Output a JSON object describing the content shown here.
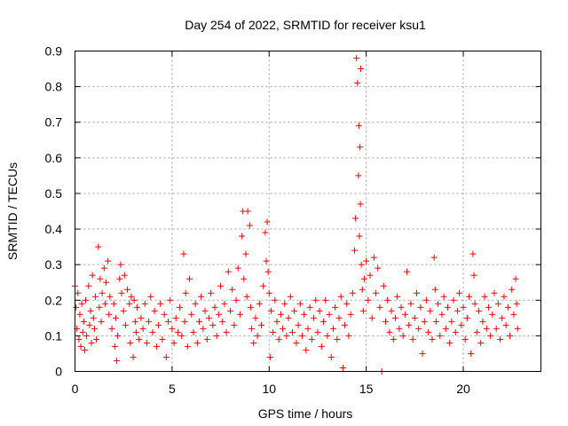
{
  "chart_data": {
    "type": "scatter",
    "title": "Day 254 of 2022, SRMTID for receiver ksu1",
    "xlabel": "GPS time / hours",
    "ylabel": "SRMTID / TECUs",
    "xlim": [
      0,
      24
    ],
    "ylim": [
      0,
      0.9
    ],
    "xticks": [
      0,
      5,
      10,
      15,
      20
    ],
    "xtick_labels": [
      "0",
      "5",
      "10",
      "15",
      "20"
    ],
    "yticks": [
      0,
      0.1,
      0.2,
      0.3,
      0.4,
      0.5,
      0.6,
      0.7,
      0.8,
      0.9
    ],
    "ytick_labels": [
      "0",
      "0.1",
      "0.2",
      "0.3",
      "0.4",
      "0.5",
      "0.6",
      "0.7",
      "0.8",
      "0.9"
    ],
    "grid": true,
    "marker": "+",
    "color": "#ff0000",
    "series": [
      {
        "name": "SRMTID",
        "points": [
          [
            0.0,
            0.24
          ],
          [
            0.05,
            0.18
          ],
          [
            0.1,
            0.12
          ],
          [
            0.15,
            0.22
          ],
          [
            0.2,
            0.09
          ],
          [
            0.25,
            0.16
          ],
          [
            0.3,
            0.07
          ],
          [
            0.35,
            0.19
          ],
          [
            0.4,
            0.11
          ],
          [
            0.45,
            0.14
          ],
          [
            0.5,
            0.06
          ],
          [
            0.55,
            0.2
          ],
          [
            0.6,
            0.1
          ],
          [
            0.7,
            0.24
          ],
          [
            0.75,
            0.13
          ],
          [
            0.8,
            0.17
          ],
          [
            0.85,
            0.08
          ],
          [
            0.9,
            0.27
          ],
          [
            0.95,
            0.15
          ],
          [
            1.0,
            0.12
          ],
          [
            1.05,
            0.21
          ],
          [
            1.1,
            0.09
          ],
          [
            1.2,
            0.35
          ],
          [
            1.25,
            0.18
          ],
          [
            1.3,
            0.26
          ],
          [
            1.35,
            0.14
          ],
          [
            1.4,
            0.22
          ],
          [
            1.5,
            0.29
          ],
          [
            1.55,
            0.19
          ],
          [
            1.6,
            0.25
          ],
          [
            1.7,
            0.31
          ],
          [
            1.75,
            0.16
          ],
          [
            1.8,
            0.21
          ],
          [
            1.9,
            0.12
          ],
          [
            2.0,
            0.19
          ],
          [
            2.05,
            0.07
          ],
          [
            2.1,
            0.15
          ],
          [
            2.15,
            0.03
          ],
          [
            2.2,
            0.1
          ],
          [
            2.3,
            0.26
          ],
          [
            2.35,
            0.3
          ],
          [
            2.4,
            0.22
          ],
          [
            2.5,
            0.17
          ],
          [
            2.55,
            0.27
          ],
          [
            2.6,
            0.13
          ],
          [
            2.7,
            0.23
          ],
          [
            2.8,
            0.19
          ],
          [
            2.85,
            0.08
          ],
          [
            2.9,
            0.21
          ],
          [
            3.0,
            0.04
          ],
          [
            3.05,
            0.2
          ],
          [
            3.1,
            0.14
          ],
          [
            3.15,
            0.11
          ],
          [
            3.2,
            0.18
          ],
          [
            3.3,
            0.09
          ],
          [
            3.4,
            0.15
          ],
          [
            3.5,
            0.12
          ],
          [
            3.6,
            0.19
          ],
          [
            3.7,
            0.08
          ],
          [
            3.8,
            0.14
          ],
          [
            3.9,
            0.21
          ],
          [
            4.0,
            0.11
          ],
          [
            4.1,
            0.17
          ],
          [
            4.2,
            0.07
          ],
          [
            4.3,
            0.13
          ],
          [
            4.4,
            0.19
          ],
          [
            4.5,
            0.09
          ],
          [
            4.6,
            0.16
          ],
          [
            4.7,
            0.04
          ],
          [
            4.8,
            0.14
          ],
          [
            4.9,
            0.2
          ],
          [
            5.0,
            0.12
          ],
          [
            5.1,
            0.08
          ],
          [
            5.2,
            0.15
          ],
          [
            5.3,
            0.11
          ],
          [
            5.4,
            0.18
          ],
          [
            5.5,
            0.1
          ],
          [
            5.6,
            0.33
          ],
          [
            5.65,
            0.14
          ],
          [
            5.7,
            0.22
          ],
          [
            5.8,
            0.07
          ],
          [
            5.9,
            0.26
          ],
          [
            6.0,
            0.16
          ],
          [
            6.1,
            0.11
          ],
          [
            6.2,
            0.19
          ],
          [
            6.3,
            0.08
          ],
          [
            6.4,
            0.14
          ],
          [
            6.5,
            0.21
          ],
          [
            6.6,
            0.12
          ],
          [
            6.7,
            0.17
          ],
          [
            6.8,
            0.09
          ],
          [
            6.9,
            0.15
          ],
          [
            7.0,
            0.22
          ],
          [
            7.1,
            0.13
          ],
          [
            7.2,
            0.18
          ],
          [
            7.3,
            0.1
          ],
          [
            7.4,
            0.16
          ],
          [
            7.5,
            0.24
          ],
          [
            7.6,
            0.14
          ],
          [
            7.7,
            0.19
          ],
          [
            7.8,
            0.11
          ],
          [
            7.9,
            0.28
          ],
          [
            8.0,
            0.17
          ],
          [
            8.1,
            0.23
          ],
          [
            8.2,
            0.13
          ],
          [
            8.3,
            0.2
          ],
          [
            8.4,
            0.29
          ],
          [
            8.5,
            0.16
          ],
          [
            8.6,
            0.38
          ],
          [
            8.65,
            0.45
          ],
          [
            8.7,
            0.26
          ],
          [
            8.8,
            0.33
          ],
          [
            8.85,
            0.21
          ],
          [
            8.9,
            0.45
          ],
          [
            9.0,
            0.41
          ],
          [
            9.05,
            0.18
          ],
          [
            9.1,
            0.12
          ],
          [
            9.2,
            0.08
          ],
          [
            9.3,
            0.15
          ],
          [
            9.4,
            0.1
          ],
          [
            9.5,
            0.19
          ],
          [
            9.6,
            0.13
          ],
          [
            9.7,
            0.24
          ],
          [
            9.8,
            0.39
          ],
          [
            9.85,
            0.31
          ],
          [
            9.9,
            0.42
          ],
          [
            9.95,
            0.28
          ],
          [
            10.0,
            0.22
          ],
          [
            10.05,
            0.04
          ],
          [
            10.1,
            0.17
          ],
          [
            10.2,
            0.11
          ],
          [
            10.3,
            0.2
          ],
          [
            10.4,
            0.14
          ],
          [
            10.5,
            0.09
          ],
          [
            10.6,
            0.16
          ],
          [
            10.7,
            0.12
          ],
          [
            10.8,
            0.19
          ],
          [
            10.9,
            0.1
          ],
          [
            11.0,
            0.15
          ],
          [
            11.1,
            0.21
          ],
          [
            11.2,
            0.11
          ],
          [
            11.3,
            0.17
          ],
          [
            11.4,
            0.08
          ],
          [
            11.5,
            0.13
          ],
          [
            11.6,
            0.19
          ],
          [
            11.7,
            0.1
          ],
          [
            11.8,
            0.16
          ],
          [
            11.9,
            0.06
          ],
          [
            12.0,
            0.12
          ],
          [
            12.1,
            0.18
          ],
          [
            12.2,
            0.09
          ],
          [
            12.3,
            0.15
          ],
          [
            12.4,
            0.2
          ],
          [
            12.5,
            0.11
          ],
          [
            12.6,
            0.17
          ],
          [
            12.7,
            0.07
          ],
          [
            12.8,
            0.14
          ],
          [
            12.9,
            0.2
          ],
          [
            13.0,
            0.1
          ],
          [
            13.1,
            0.16
          ],
          [
            13.2,
            0.04
          ],
          [
            13.3,
            0.12
          ],
          [
            13.4,
            0.18
          ],
          [
            13.5,
            0.09
          ],
          [
            13.6,
            0.15
          ],
          [
            13.7,
            0.21
          ],
          [
            13.8,
            0.01
          ],
          [
            13.9,
            0.13
          ],
          [
            14.0,
            0.19
          ],
          [
            14.1,
            0.1
          ],
          [
            14.2,
            0.16
          ],
          [
            14.3,
            0.22
          ],
          [
            14.4,
            0.34
          ],
          [
            14.45,
            0.43
          ],
          [
            14.5,
            0.88
          ],
          [
            14.55,
            0.81
          ],
          [
            14.6,
            0.55
          ],
          [
            14.62,
            0.69
          ],
          [
            14.65,
            0.38
          ],
          [
            14.68,
            0.63
          ],
          [
            14.7,
            0.47
          ],
          [
            14.72,
            0.85
          ],
          [
            14.75,
            0.3
          ],
          [
            14.8,
            0.23
          ],
          [
            14.85,
            0.17
          ],
          [
            14.9,
            0.26
          ],
          [
            15.0,
            0.31
          ],
          [
            15.1,
            0.2
          ],
          [
            15.2,
            0.27
          ],
          [
            15.3,
            0.15
          ],
          [
            15.4,
            0.32
          ],
          [
            15.5,
            0.22
          ],
          [
            15.6,
            0.29
          ],
          [
            15.7,
            0.18
          ],
          [
            15.8,
            0.0
          ],
          [
            15.9,
            0.24
          ],
          [
            16.0,
            0.14
          ],
          [
            16.1,
            0.2
          ],
          [
            16.2,
            0.11
          ],
          [
            16.3,
            0.17
          ],
          [
            16.4,
            0.09
          ],
          [
            16.5,
            0.15
          ],
          [
            16.6,
            0.21
          ],
          [
            16.7,
            0.12
          ],
          [
            16.8,
            0.18
          ],
          [
            16.9,
            0.1
          ],
          [
            17.0,
            0.16
          ],
          [
            17.1,
            0.28
          ],
          [
            17.2,
            0.13
          ],
          [
            17.3,
            0.19
          ],
          [
            17.4,
            0.09
          ],
          [
            17.5,
            0.15
          ],
          [
            17.6,
            0.22
          ],
          [
            17.7,
            0.12
          ],
          [
            17.8,
            0.18
          ],
          [
            17.9,
            0.05
          ],
          [
            18.0,
            0.14
          ],
          [
            18.1,
            0.2
          ],
          [
            18.2,
            0.11
          ],
          [
            18.3,
            0.17
          ],
          [
            18.4,
            0.09
          ],
          [
            18.5,
            0.32
          ],
          [
            18.55,
            0.23
          ],
          [
            18.6,
            0.14
          ],
          [
            18.7,
            0.19
          ],
          [
            18.8,
            0.1
          ],
          [
            18.9,
            0.16
          ],
          [
            19.0,
            0.21
          ],
          [
            19.1,
            0.12
          ],
          [
            19.2,
            0.18
          ],
          [
            19.3,
            0.08
          ],
          [
            19.4,
            0.14
          ],
          [
            19.5,
            0.2
          ],
          [
            19.6,
            0.11
          ],
          [
            19.7,
            0.17
          ],
          [
            19.8,
            0.22
          ],
          [
            19.9,
            0.13
          ],
          [
            20.0,
            0.18
          ],
          [
            20.1,
            0.09
          ],
          [
            20.2,
            0.15
          ],
          [
            20.3,
            0.21
          ],
          [
            20.4,
            0.05
          ],
          [
            20.5,
            0.33
          ],
          [
            20.55,
            0.27
          ],
          [
            20.6,
            0.19
          ],
          [
            20.7,
            0.11
          ],
          [
            20.8,
            0.17
          ],
          [
            20.9,
            0.08
          ],
          [
            21.0,
            0.14
          ],
          [
            21.1,
            0.21
          ],
          [
            21.2,
            0.12
          ],
          [
            21.3,
            0.18
          ],
          [
            21.4,
            0.1
          ],
          [
            21.5,
            0.16
          ],
          [
            21.6,
            0.22
          ],
          [
            21.7,
            0.12
          ],
          [
            21.8,
            0.19
          ],
          [
            21.9,
            0.09
          ],
          [
            22.0,
            0.15
          ],
          [
            22.1,
            0.21
          ],
          [
            22.2,
            0.13
          ],
          [
            22.3,
            0.18
          ],
          [
            22.4,
            0.1
          ],
          [
            22.5,
            0.23
          ],
          [
            22.6,
            0.16
          ],
          [
            22.7,
            0.26
          ],
          [
            22.75,
            0.19
          ],
          [
            22.8,
            0.12
          ]
        ]
      }
    ]
  }
}
